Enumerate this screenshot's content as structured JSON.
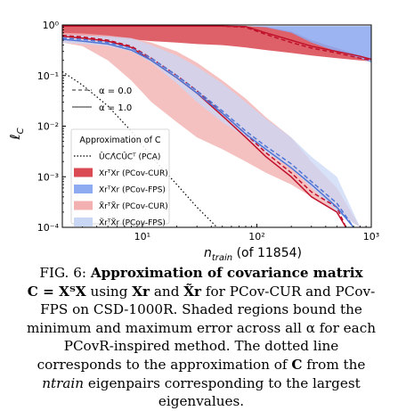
{
  "chart_data": {
    "type": "area",
    "xscale": "log",
    "yscale": "log",
    "xlim": [
      2,
      1000
    ],
    "ylim": [
      0.0001,
      1
    ],
    "xticks": [
      10,
      100,
      1000
    ],
    "xtick_labels": [
      "10¹",
      "10²",
      "10³"
    ],
    "yticks": [
      0.0001,
      0.001,
      0.01,
      0.1,
      1
    ],
    "ytick_labels": [
      "10⁻⁴",
      "10⁻³",
      "10⁻²",
      "10⁻¹",
      "10⁰"
    ],
    "xlabel_main": "n",
    "xlabel_sub": "train",
    "xlabel_rest": " (of 11854)",
    "ylabel_main": "ℓ",
    "ylabel_sub": "C",
    "bands": [
      {
        "name": "XrᵀXr (PCov-CUR)",
        "color": "#d94a53",
        "opacity": 0.88,
        "x": [
          2,
          3,
          5,
          8,
          12,
          20,
          30,
          50,
          80,
          120,
          200,
          300,
          500,
          800,
          1000
        ],
        "upper": [
          0.95,
          0.95,
          0.95,
          0.95,
          0.95,
          0.95,
          0.95,
          0.95,
          0.95,
          0.92,
          0.75,
          0.5,
          0.35,
          0.25,
          0.22
        ],
        "lower": [
          0.62,
          0.58,
          0.56,
          0.52,
          0.48,
          0.45,
          0.42,
          0.4,
          0.36,
          0.32,
          0.28,
          0.25,
          0.22,
          0.2,
          0.19
        ]
      },
      {
        "name": "XrᵀXr (PCov-FPS)",
        "color": "#8eaaf0",
        "opacity": 0.88,
        "x": [
          2,
          3,
          5,
          8,
          12,
          20,
          30,
          50,
          80,
          120,
          200,
          300,
          500,
          800,
          1000
        ],
        "upper": [
          0.95,
          0.95,
          0.95,
          0.95,
          0.95,
          0.95,
          0.95,
          0.95,
          0.95,
          0.95,
          0.95,
          0.95,
          0.95,
          0.95,
          0.95
        ],
        "lower": [
          0.95,
          0.95,
          0.95,
          0.95,
          0.95,
          0.95,
          0.95,
          0.95,
          0.95,
          0.9,
          0.7,
          0.45,
          0.3,
          0.22,
          0.18
        ]
      },
      {
        "name": "X̃rᵀX̃r (PCov-CUR)",
        "color": "#f2b0b0",
        "opacity": 0.8,
        "x": [
          2,
          3,
          5,
          8,
          12,
          20,
          30,
          50,
          80,
          120,
          200,
          300,
          500,
          800
        ],
        "upper": [
          0.7,
          0.68,
          0.62,
          0.55,
          0.45,
          0.3,
          0.18,
          0.08,
          0.035,
          0.015,
          0.006,
          0.002,
          0.0006,
          0.0001
        ],
        "lower": [
          0.45,
          0.38,
          0.2,
          0.08,
          0.03,
          0.012,
          0.006,
          0.0035,
          0.002,
          0.0012,
          0.0007,
          0.0004,
          0.0002,
          0.0001
        ]
      },
      {
        "name": "X̃rᵀX̃r (PCov-FPS)",
        "color": "#c9d7f5",
        "opacity": 0.75,
        "x": [
          2,
          3,
          5,
          8,
          12,
          20,
          30,
          50,
          80,
          120,
          200,
          300,
          500,
          800
        ],
        "upper": [
          0.65,
          0.62,
          0.6,
          0.55,
          0.4,
          0.25,
          0.15,
          0.07,
          0.03,
          0.014,
          0.006,
          0.0025,
          0.001,
          0.0001
        ],
        "lower": [
          0.45,
          0.42,
          0.38,
          0.3,
          0.18,
          0.07,
          0.03,
          0.012,
          0.006,
          0.003,
          0.0015,
          0.0006,
          0.0002,
          0.0001
        ]
      }
    ],
    "lines": [
      {
        "color": "#c0102a",
        "dash": "5,3",
        "width": 1.5,
        "x": [
          2,
          3,
          5,
          8,
          12,
          20,
          30,
          50,
          80,
          120,
          200,
          300,
          500,
          800,
          1000
        ],
        "y": [
          0.95,
          0.95,
          0.95,
          0.95,
          0.95,
          0.95,
          0.95,
          0.95,
          0.9,
          0.65,
          0.45,
          0.35,
          0.28,
          0.22,
          0.2
        ]
      },
      {
        "color": "#c0102a",
        "dash": "",
        "width": 1.5,
        "x": [
          2,
          3,
          5,
          8,
          12,
          20,
          30,
          50,
          80,
          120,
          200,
          300,
          500,
          800,
          1000
        ],
        "y": [
          0.95,
          0.95,
          0.95,
          0.95,
          0.95,
          0.95,
          0.95,
          0.95,
          0.93,
          0.7,
          0.5,
          0.38,
          0.3,
          0.24,
          0.21
        ]
      },
      {
        "color": "#c0102a",
        "dash": "5,3",
        "width": 1.5,
        "x": [
          2,
          3,
          5,
          8,
          12,
          20,
          30,
          50,
          80,
          120,
          200,
          300,
          500,
          600
        ],
        "y": [
          0.62,
          0.58,
          0.5,
          0.38,
          0.22,
          0.1,
          0.05,
          0.018,
          0.007,
          0.003,
          0.0012,
          0.0005,
          0.00025,
          0.0001
        ]
      },
      {
        "color": "#c0102a",
        "dash": "",
        "width": 1.5,
        "x": [
          2,
          3,
          5,
          8,
          12,
          20,
          30,
          50,
          80,
          120,
          200,
          300,
          500,
          600
        ],
        "y": [
          0.6,
          0.55,
          0.48,
          0.36,
          0.2,
          0.09,
          0.045,
          0.016,
          0.006,
          0.0025,
          0.001,
          0.0004,
          0.0002,
          0.0001
        ]
      },
      {
        "color": "#4f76d6",
        "dash": "5,3",
        "width": 1.5,
        "x": [
          2,
          3,
          5,
          8,
          12,
          20,
          30,
          50,
          80,
          120,
          200,
          300,
          500,
          700
        ],
        "y": [
          0.55,
          0.52,
          0.45,
          0.35,
          0.22,
          0.1,
          0.05,
          0.02,
          0.008,
          0.004,
          0.0018,
          0.0008,
          0.0003,
          0.0001
        ]
      },
      {
        "color": "#4f76d6",
        "dash": "",
        "width": 1.5,
        "x": [
          2,
          3,
          5,
          8,
          12,
          20,
          30,
          50,
          80,
          120,
          200,
          300,
          500,
          700
        ],
        "y": [
          0.52,
          0.48,
          0.42,
          0.32,
          0.2,
          0.09,
          0.045,
          0.018,
          0.007,
          0.0035,
          0.0015,
          0.0007,
          0.00025,
          0.0001
        ]
      },
      {
        "color": "#000000",
        "dash": "1.5,2.5",
        "width": 1.2,
        "x": [
          2,
          3,
          5,
          8,
          12,
          20,
          30,
          45
        ],
        "y": [
          0.12,
          0.065,
          0.025,
          0.008,
          0.0025,
          0.0007,
          0.00025,
          0.0001
        ]
      }
    ],
    "legend": {
      "placement": "left",
      "alpha_entries": [
        {
          "label": "α = 0.0",
          "style": "dashed"
        },
        {
          "label": "α = 1.0",
          "style": "solid"
        }
      ],
      "title": "Approximation of C",
      "entries": [
        {
          "label": "ÛCΛ̂CÛCᵀ (PCA)",
          "kind": "dotted",
          "color": "#000000"
        },
        {
          "label": "XrᵀXr (PCov-CUR)",
          "kind": "patch",
          "color": "#d94a53"
        },
        {
          "label": "XrᵀXr (PCov-FPS)",
          "kind": "patch",
          "color": "#8eaaf0"
        },
        {
          "label": "X̃rᵀX̃r (PCov-CUR)",
          "kind": "patch",
          "color": "#f2b0b0"
        },
        {
          "label": "X̃rᵀX̃r (PCov-FPS)",
          "kind": "patch",
          "color": "#c9d7f5"
        }
      ]
    }
  },
  "caption": {
    "label": "FIG. 6:",
    "title": "Approximation of covariance matrix",
    "eq": "C = XᵀX",
    "text1": " using ",
    "xr": "Xr",
    "text2": " and ",
    "xtr": "X̃r",
    "text3": " for PCov-CUR and PCov-FPS on CSD-1000R. Shaded regions bound the minimum and maximum error across all α for each PCovR-inspired method. The dotted line corresponds to the approximation of ",
    "c": "C",
    "text4": " from the ",
    "ntrain": "ntrain",
    "text5": " eigenpairs corresponding to the largest eigenvalues."
  }
}
